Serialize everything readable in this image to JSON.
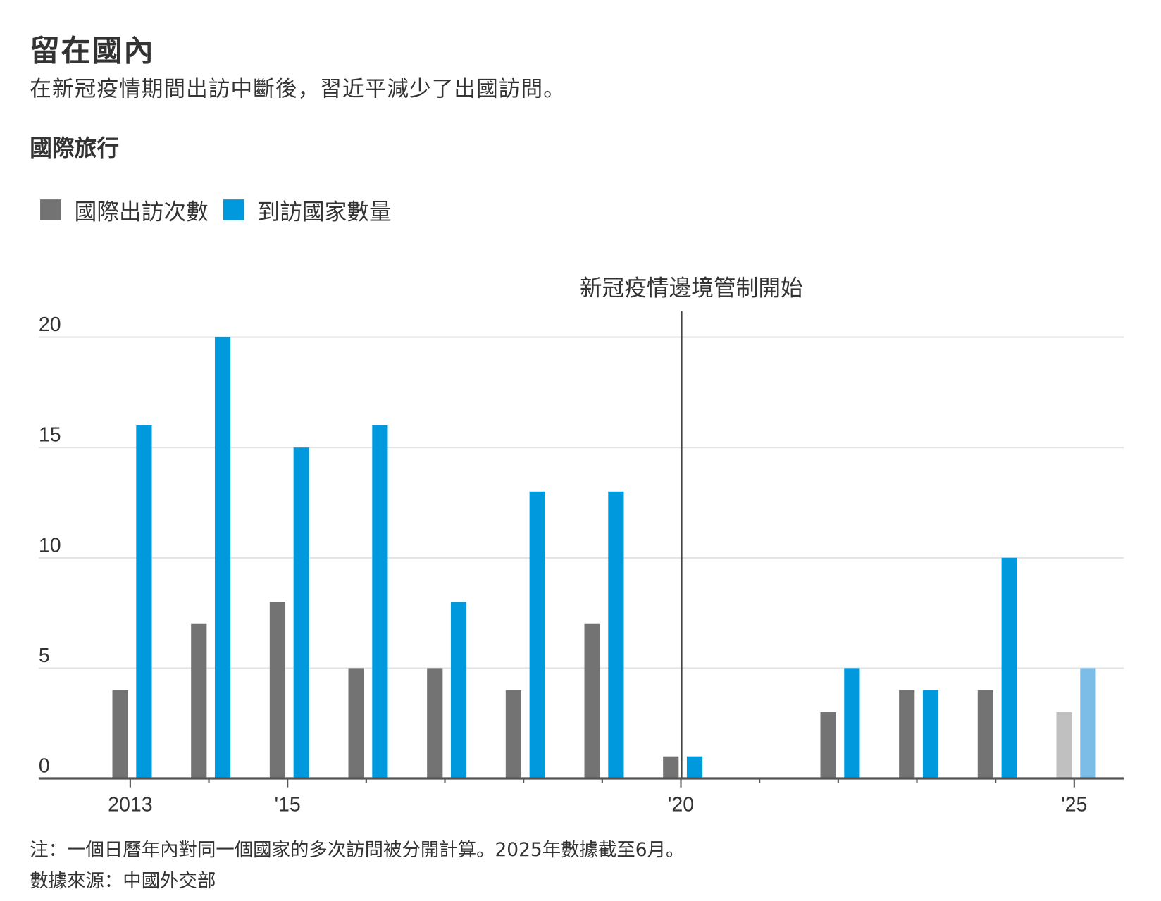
{
  "header": {
    "title": "留在國內",
    "subtitle": "在新冠疫情期間出訪中斷後，習近平減少了出國訪問。"
  },
  "footer": {
    "note": "注：一個日曆年內對同一個國家的多次訪問被分開計算。2025年數據截至6月。",
    "source": "數據來源：中國外交部"
  },
  "chart_data": {
    "type": "bar",
    "title": "國際旅行",
    "categories": [
      "2013",
      "2014",
      "2015",
      "2016",
      "2017",
      "2018",
      "2019",
      "2020",
      "2021",
      "2022",
      "2023",
      "2024",
      "2025"
    ],
    "x_tick_labels": [
      {
        "year": "2013",
        "label": "2013"
      },
      {
        "year": "2015",
        "label": "'15"
      },
      {
        "year": "2020",
        "label": "'20"
      },
      {
        "year": "2025",
        "label": "'25"
      }
    ],
    "series": [
      {
        "name": "國際出訪次數",
        "color": "#737373",
        "partial_color": "#c0c0c0",
        "values": [
          4,
          7,
          8,
          5,
          5,
          4,
          7,
          1,
          0,
          3,
          4,
          4,
          3
        ]
      },
      {
        "name": "到訪國家數量",
        "color": "#0099dd",
        "partial_color": "#7bbde6",
        "values": [
          16,
          20,
          15,
          16,
          8,
          13,
          13,
          1,
          0,
          5,
          4,
          10,
          5
        ]
      }
    ],
    "partial_year": "2025",
    "ylim": [
      0,
      20
    ],
    "yticks": [
      0,
      5,
      10,
      15,
      20
    ],
    "grid": true,
    "legend_placement": "top-left",
    "annotation": {
      "x": "2020",
      "label": "新冠疫情邊境管制開始"
    }
  }
}
